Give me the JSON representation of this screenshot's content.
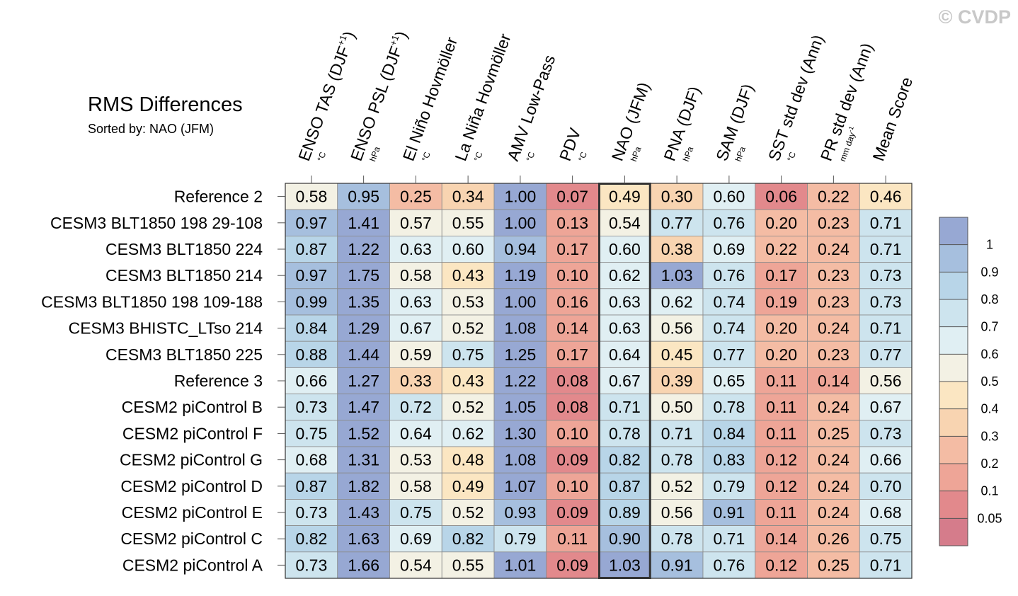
{
  "watermark": "© CVDP",
  "chart_data": {
    "type": "heatmap",
    "title": "RMS Differences",
    "subtitle": "Sorted by: NAO (JFM)",
    "highlight_column": "NAO (JFM)",
    "columns": [
      {
        "label": "ENSO TAS (DJF",
        "sup": "+1",
        "close": ")",
        "unit": "°C"
      },
      {
        "label": "ENSO PSL (DJF",
        "sup": "+1",
        "close": ")",
        "unit": "hPa"
      },
      {
        "label": "El Niño Hovmöller",
        "sup": "",
        "close": "",
        "unit": "°C"
      },
      {
        "label": "La Niña Hovmöller",
        "sup": "",
        "close": "",
        "unit": "°C"
      },
      {
        "label": "AMV Low-Pass",
        "sup": "",
        "close": "",
        "unit": "°C"
      },
      {
        "label": "PDV",
        "sup": "",
        "close": "",
        "unit": "°C"
      },
      {
        "label": "NAO (JFM)",
        "sup": "",
        "close": "",
        "unit": "hPa"
      },
      {
        "label": "PNA (DJF)",
        "sup": "",
        "close": "",
        "unit": "hPa"
      },
      {
        "label": "SAM (DJF)",
        "sup": "",
        "close": "",
        "unit": "hPa"
      },
      {
        "label": "SST std dev (Ann)",
        "sup": "",
        "close": "",
        "unit": "°C"
      },
      {
        "label": "PR std dev (Ann)",
        "sup": "",
        "close": "",
        "unit": "mm day",
        "unit_sup": "-1"
      },
      {
        "label": "Mean Score",
        "sup": "",
        "close": "",
        "unit": ""
      }
    ],
    "rows": [
      {
        "name": "Reference 2",
        "values": [
          0.58,
          0.95,
          0.25,
          0.34,
          1.0,
          0.07,
          0.49,
          0.3,
          0.6,
          0.06,
          0.22,
          0.46
        ]
      },
      {
        "name": "CESM3 BLT1850 198 29-108",
        "values": [
          0.97,
          1.41,
          0.57,
          0.55,
          1.0,
          0.13,
          0.54,
          0.77,
          0.76,
          0.2,
          0.23,
          0.71
        ]
      },
      {
        "name": "CESM3 BLT1850 224",
        "values": [
          0.87,
          1.22,
          0.63,
          0.6,
          0.94,
          0.17,
          0.6,
          0.38,
          0.69,
          0.22,
          0.24,
          0.71
        ]
      },
      {
        "name": "CESM3 BLT1850 214",
        "values": [
          0.97,
          1.75,
          0.58,
          0.43,
          1.19,
          0.1,
          0.62,
          1.03,
          0.76,
          0.17,
          0.23,
          0.73
        ]
      },
      {
        "name": "CESM3 BLT1850 198 109-188",
        "values": [
          0.99,
          1.35,
          0.63,
          0.53,
          1.0,
          0.16,
          0.63,
          0.62,
          0.74,
          0.19,
          0.23,
          0.73
        ]
      },
      {
        "name": "CESM3 BHISTC_LTso 214",
        "values": [
          0.84,
          1.29,
          0.67,
          0.52,
          1.08,
          0.14,
          0.63,
          0.56,
          0.74,
          0.2,
          0.24,
          0.71
        ]
      },
      {
        "name": "CESM3 BLT1850 225",
        "values": [
          0.88,
          1.44,
          0.59,
          0.75,
          1.25,
          0.17,
          0.64,
          0.45,
          0.77,
          0.2,
          0.23,
          0.77
        ]
      },
      {
        "name": "Reference 3",
        "values": [
          0.66,
          1.27,
          0.33,
          0.43,
          1.22,
          0.08,
          0.67,
          0.39,
          0.65,
          0.11,
          0.14,
          0.56
        ]
      },
      {
        "name": "CESM2 piControl B",
        "values": [
          0.73,
          1.47,
          0.72,
          0.52,
          1.05,
          0.08,
          0.71,
          0.5,
          0.78,
          0.11,
          0.24,
          0.67
        ]
      },
      {
        "name": "CESM2 piControl F",
        "values": [
          0.75,
          1.52,
          0.64,
          0.62,
          1.3,
          0.1,
          0.78,
          0.71,
          0.84,
          0.11,
          0.25,
          0.73
        ]
      },
      {
        "name": "CESM2 piControl G",
        "values": [
          0.68,
          1.31,
          0.53,
          0.48,
          1.08,
          0.09,
          0.82,
          0.78,
          0.83,
          0.12,
          0.24,
          0.66
        ]
      },
      {
        "name": "CESM2 piControl D",
        "values": [
          0.87,
          1.82,
          0.58,
          0.49,
          1.07,
          0.1,
          0.87,
          0.52,
          0.79,
          0.12,
          0.24,
          0.7
        ]
      },
      {
        "name": "CESM2 piControl E",
        "values": [
          0.73,
          1.43,
          0.75,
          0.52,
          0.93,
          0.09,
          0.89,
          0.56,
          0.91,
          0.11,
          0.24,
          0.68
        ]
      },
      {
        "name": "CESM2 piControl C",
        "values": [
          0.82,
          1.63,
          0.69,
          0.82,
          0.79,
          0.11,
          0.9,
          0.78,
          0.71,
          0.14,
          0.26,
          0.75
        ]
      },
      {
        "name": "CESM2 piControl A",
        "values": [
          0.73,
          1.66,
          0.54,
          0.55,
          1.01,
          0.09,
          1.03,
          0.91,
          0.76,
          0.12,
          0.25,
          0.71
        ]
      }
    ],
    "colorbar": {
      "levels": [
        0.05,
        0.1,
        0.2,
        0.3,
        0.4,
        0.5,
        0.6,
        0.7,
        0.8,
        0.9,
        1
      ],
      "tick_labels": [
        "0.05",
        "0.1",
        "0.2",
        "0.3",
        "0.4",
        "0.5",
        "0.6",
        "0.7",
        "0.8",
        "0.9",
        "1"
      ],
      "colors": [
        "#d57c8b",
        "#e2898c",
        "#eea597",
        "#f4bca4",
        "#f8d4b1",
        "#fbe6c2",
        "#f3f1e4",
        "#e0eff3",
        "#cde4ee",
        "#b8d5e8",
        "#a6bfde",
        "#97a8d3"
      ]
    }
  }
}
